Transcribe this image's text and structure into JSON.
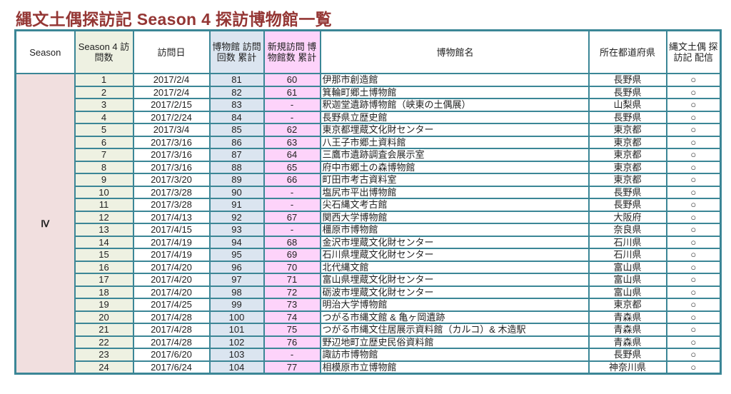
{
  "title": "縄文土偶探訪記 Season 4 探訪博物館一覧",
  "headers": {
    "season": "Season",
    "visit": "Season 4 訪問数",
    "date": "訪問日",
    "cum": "博物館 訪問回数 累計",
    "new": "新規訪問 博物館数 累計",
    "name": "博物館名",
    "pref": "所在都道府県",
    "delivery": "縄文土偶 探訪記 配信"
  },
  "season_value": "Ⅳ",
  "rows": [
    [
      "1",
      "2017/2/4",
      "81",
      "60",
      "伊那市創造館",
      "長野県",
      "○"
    ],
    [
      "2",
      "2017/2/4",
      "82",
      "61",
      "箕輪町郷土博物館",
      "長野県",
      "○"
    ],
    [
      "3",
      "2017/2/15",
      "83",
      "-",
      "釈迦堂遺跡博物館（峡東の土偶展）",
      "山梨県",
      "○"
    ],
    [
      "4",
      "2017/2/24",
      "84",
      "-",
      "長野県立歴史館",
      "長野県",
      "○"
    ],
    [
      "5",
      "2017/3/4",
      "85",
      "62",
      "東京都埋蔵文化財センター",
      "東京都",
      "○"
    ],
    [
      "6",
      "2017/3/16",
      "86",
      "63",
      "八王子市郷土資料館",
      "東京都",
      "○"
    ],
    [
      "7",
      "2017/3/16",
      "87",
      "64",
      "三鷹市遺跡調査会展示室",
      "東京都",
      "○"
    ],
    [
      "8",
      "2017/3/16",
      "88",
      "65",
      "府中市郷土の森博物館",
      "東京都",
      "○"
    ],
    [
      "9",
      "2017/3/20",
      "89",
      "66",
      "町田市考古資料室",
      "東京都",
      "○"
    ],
    [
      "10",
      "2017/3/28",
      "90",
      "-",
      "塩尻市平出博物館",
      "長野県",
      "○"
    ],
    [
      "11",
      "2017/3/28",
      "91",
      "-",
      "尖石縄文考古館",
      "長野県",
      "○"
    ],
    [
      "12",
      "2017/4/13",
      "92",
      "67",
      "関西大学博物館",
      "大阪府",
      "○"
    ],
    [
      "13",
      "2017/4/15",
      "93",
      "-",
      "橿原市博物館",
      "奈良県",
      "○"
    ],
    [
      "14",
      "2017/4/19",
      "94",
      "68",
      "金沢市埋蔵文化財センター",
      "石川県",
      "○"
    ],
    [
      "15",
      "2017/4/19",
      "95",
      "69",
      "石川県埋蔵文化財センター",
      "石川県",
      "○"
    ],
    [
      "16",
      "2017/4/20",
      "96",
      "70",
      "北代縄文館",
      "富山県",
      "○"
    ],
    [
      "17",
      "2017/4/20",
      "97",
      "71",
      "富山県埋蔵文化財センター",
      "富山県",
      "○"
    ],
    [
      "18",
      "2017/4/20",
      "98",
      "72",
      "砺波市埋蔵文化財センター",
      "富山県",
      "○"
    ],
    [
      "19",
      "2017/4/25",
      "99",
      "73",
      "明治大学博物館",
      "東京都",
      "○"
    ],
    [
      "20",
      "2017/4/28",
      "100",
      "74",
      "つがる市縄文館 & 亀ヶ岡遺跡",
      "青森県",
      "○"
    ],
    [
      "21",
      "2017/4/28",
      "101",
      "75",
      "つがる市縄文住居展示資料館（カルコ）& 木造駅",
      "青森県",
      "○"
    ],
    [
      "22",
      "2017/4/28",
      "102",
      "76",
      "野辺地町立歴史民俗資料館",
      "青森県",
      "○"
    ],
    [
      "23",
      "2017/6/20",
      "103",
      "-",
      "諏訪市博物館",
      "長野県",
      "○"
    ],
    [
      "24",
      "2017/6/24",
      "104",
      "77",
      "相模原市立博物館",
      "神奈川県",
      "○"
    ]
  ]
}
